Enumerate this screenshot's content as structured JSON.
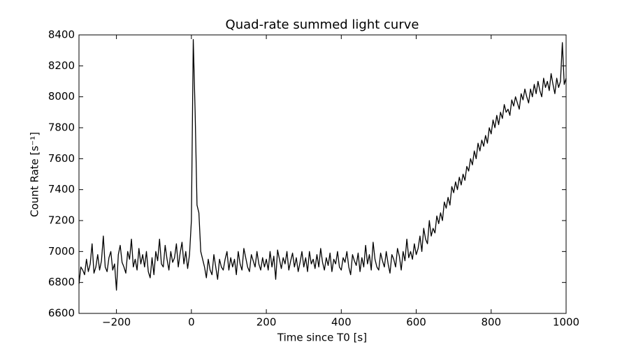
{
  "chart_data": {
    "type": "line",
    "title": "Quad-rate summed light curve",
    "x_label": "Time since T0 [s]",
    "y_label": "Count Rate [s⁻¹]",
    "xlim": [
      -300,
      1000
    ],
    "xticks": [
      {
        "value": -200,
        "label": "−200"
      },
      0,
      200,
      400,
      600,
      800,
      1000
    ],
    "ylim": [
      6600,
      8400
    ],
    "yticks": [
      6600,
      6800,
      7000,
      7200,
      7400,
      7600,
      7800,
      8000,
      8200,
      8400
    ],
    "x": [
      -300,
      -295,
      -290,
      -285,
      -280,
      -275,
      -270,
      -265,
      -260,
      -255,
      -250,
      -245,
      -240,
      -235,
      -230,
      -225,
      -220,
      -215,
      -210,
      -205,
      -200,
      -195,
      -190,
      -185,
      -180,
      -175,
      -170,
      -165,
      -160,
      -155,
      -150,
      -145,
      -140,
      -135,
      -130,
      -125,
      -120,
      -115,
      -110,
      -105,
      -100,
      -95,
      -90,
      -85,
      -80,
      -75,
      -70,
      -65,
      -60,
      -55,
      -50,
      -45,
      -40,
      -35,
      -30,
      -25,
      -20,
      -15,
      -10,
      -5,
      0,
      5,
      10,
      15,
      20,
      25,
      30,
      35,
      40,
      45,
      50,
      55,
      60,
      65,
      70,
      75,
      80,
      85,
      90,
      95,
      100,
      105,
      110,
      115,
      120,
      125,
      130,
      135,
      140,
      145,
      150,
      155,
      160,
      165,
      170,
      175,
      180,
      185,
      190,
      195,
      200,
      205,
      210,
      215,
      220,
      225,
      230,
      235,
      240,
      245,
      250,
      255,
      260,
      265,
      270,
      275,
      280,
      285,
      290,
      295,
      300,
      305,
      310,
      315,
      320,
      325,
      330,
      335,
      340,
      345,
      350,
      355,
      360,
      365,
      370,
      375,
      380,
      385,
      390,
      395,
      400,
      405,
      410,
      415,
      420,
      425,
      430,
      435,
      440,
      445,
      450,
      455,
      460,
      465,
      470,
      475,
      480,
      485,
      490,
      495,
      500,
      505,
      510,
      515,
      520,
      525,
      530,
      535,
      540,
      545,
      550,
      555,
      560,
      565,
      570,
      575,
      580,
      585,
      590,
      595,
      600,
      605,
      610,
      615,
      620,
      625,
      630,
      635,
      640,
      645,
      650,
      655,
      660,
      665,
      670,
      675,
      680,
      685,
      690,
      695,
      700,
      705,
      710,
      715,
      720,
      725,
      730,
      735,
      740,
      745,
      750,
      755,
      760,
      765,
      770,
      775,
      780,
      785,
      790,
      795,
      800,
      805,
      810,
      815,
      820,
      825,
      830,
      835,
      840,
      845,
      850,
      855,
      860,
      865,
      870,
      875,
      880,
      885,
      890,
      895,
      900,
      905,
      910,
      915,
      920,
      925,
      930,
      935,
      940,
      945,
      950,
      955,
      960,
      965,
      970,
      975,
      980,
      985,
      990,
      995,
      1000
    ],
    "series": [
      {
        "color": "#000000",
        "values": [
          6790,
          6900,
          6880,
          6850,
          6950,
          6870,
          6920,
          7050,
          6860,
          6900,
          6980,
          6880,
          6940,
          7100,
          6900,
          6870,
          6960,
          7000,
          6880,
          6920,
          6750,
          6980,
          7040,
          6930,
          6900,
          6860,
          7000,
          6950,
          7080,
          6900,
          6950,
          6880,
          7020,
          6920,
          6980,
          6900,
          7000,
          6870,
          6830,
          6960,
          6850,
          7000,
          6940,
          7080,
          6920,
          6900,
          7040,
          6950,
          6880,
          7000,
          6930,
          6960,
          7050,
          6900,
          6990,
          7060,
          6920,
          7000,
          6890,
          6980,
          7200,
          8370,
          7900,
          7300,
          7250,
          7000,
          6950,
          6900,
          6830,
          6950,
          6880,
          6850,
          6980,
          6900,
          6820,
          6950,
          6900,
          6880,
          6950,
          7000,
          6880,
          6960,
          6900,
          6950,
          6850,
          7000,
          6920,
          6880,
          7020,
          6960,
          6900,
          6870,
          6980,
          6940,
          6900,
          7000,
          6920,
          6880,
          6960,
          6900,
          6950,
          6880,
          7000,
          6900,
          6970,
          6820,
          7010,
          6950,
          6890,
          6960,
          6920,
          7000,
          6880,
          6940,
          6990,
          6900,
          6960,
          6870,
          6930,
          7000,
          6900,
          6960,
          6870,
          7000,
          6920,
          6950,
          6890,
          6980,
          6900,
          7020,
          6930,
          6880,
          6960,
          6910,
          6990,
          6870,
          6950,
          6920,
          7000,
          6900,
          6880,
          6960,
          6930,
          7000,
          6900,
          6850,
          6980,
          6940,
          6910,
          6990,
          6870,
          6960,
          6900,
          7040,
          6920,
          6980,
          6880,
          7060,
          6950,
          6900,
          6880,
          6990,
          6940,
          6900,
          7000,
          6920,
          6860,
          6980,
          6950,
          6900,
          7020,
          6970,
          6880,
          7000,
          6940,
          7080,
          6960,
          7000,
          6950,
          7050,
          6980,
          7020,
          7100,
          7000,
          7150,
          7080,
          7050,
          7200,
          7100,
          7150,
          7120,
          7230,
          7180,
          7250,
          7200,
          7320,
          7280,
          7350,
          7300,
          7420,
          7380,
          7450,
          7400,
          7480,
          7430,
          7500,
          7460,
          7550,
          7520,
          7600,
          7560,
          7650,
          7600,
          7700,
          7650,
          7720,
          7680,
          7750,
          7700,
          7800,
          7760,
          7850,
          7800,
          7880,
          7820,
          7900,
          7860,
          7950,
          7900,
          7920,
          7880,
          7980,
          7940,
          8000,
          7960,
          7920,
          8020,
          7980,
          8050,
          8000,
          7960,
          8050,
          8000,
          8080,
          8020,
          8100,
          8040,
          8000,
          8120,
          8060,
          8100,
          8040,
          8150,
          8080,
          8020,
          8120,
          8060,
          8100,
          8350,
          8080,
          8120
        ]
      }
    ]
  }
}
